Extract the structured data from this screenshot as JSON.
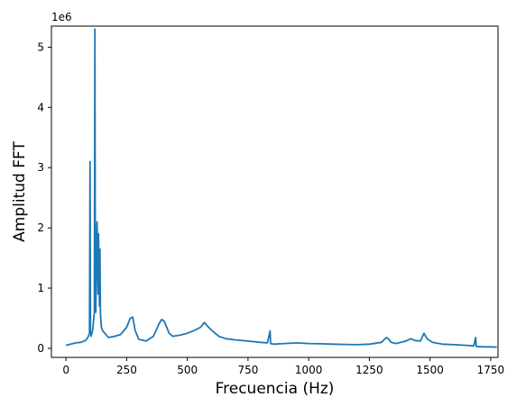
{
  "chart_data": {
    "type": "line",
    "title": "",
    "xlabel": "Frecuencia (Hz)",
    "ylabel": "Amplitud FFT",
    "y_offset_label": "1e6",
    "xlim": [
      -60,
      1780
    ],
    "ylim": [
      -150000,
      5350000
    ],
    "x_ticks": [
      0,
      250,
      500,
      750,
      1000,
      1250,
      1500,
      1750
    ],
    "x_tick_labels": [
      "0",
      "250",
      "500",
      "750",
      "1000",
      "1250",
      "1500",
      "1750"
    ],
    "y_ticks": [
      0,
      1000000,
      2000000,
      3000000,
      4000000,
      5000000
    ],
    "y_tick_labels": [
      "0",
      "1",
      "2",
      "3",
      "4",
      "5"
    ],
    "grid": false,
    "line_color": "#1f77b4",
    "series": [
      {
        "x": [
          0,
          20,
          40,
          60,
          80,
          90,
          97,
          99,
          101,
          103,
          110,
          117,
          119,
          121,
          123,
          126,
          128,
          132,
          134,
          138,
          140,
          142,
          144,
          146,
          150,
          160,
          175,
          200,
          225,
          250,
          265,
          275,
          285,
          300,
          330,
          360,
          385,
          395,
          405,
          415,
          425,
          440,
          470,
          500,
          530,
          555,
          570,
          580,
          600,
          630,
          660,
          700,
          750,
          800,
          830,
          841,
          843,
          855,
          900,
          950,
          1000,
          1050,
          1100,
          1150,
          1200,
          1250,
          1300,
          1320,
          1330,
          1340,
          1360,
          1400,
          1420,
          1440,
          1460,
          1475,
          1490,
          1510,
          1550,
          1600,
          1650,
          1680,
          1688,
          1690,
          1692,
          1700,
          1720,
          1750,
          1775
        ],
        "y": [
          50000,
          70000,
          90000,
          100000,
          130000,
          180000,
          250000,
          3100000,
          300000,
          200000,
          300000,
          600000,
          5300000,
          800000,
          600000,
          1600000,
          2100000,
          900000,
          1900000,
          700000,
          1650000,
          600000,
          450000,
          350000,
          300000,
          250000,
          180000,
          200000,
          230000,
          350000,
          500000,
          520000,
          300000,
          150000,
          120000,
          200000,
          420000,
          480000,
          450000,
          350000,
          250000,
          200000,
          220000,
          250000,
          300000,
          350000,
          430000,
          380000,
          300000,
          200000,
          160000,
          140000,
          120000,
          100000,
          90000,
          290000,
          80000,
          70000,
          80000,
          90000,
          80000,
          75000,
          70000,
          65000,
          60000,
          70000,
          100000,
          180000,
          150000,
          100000,
          80000,
          120000,
          160000,
          130000,
          120000,
          250000,
          150000,
          100000,
          70000,
          60000,
          50000,
          40000,
          180000,
          40000,
          30000,
          30000,
          25000,
          25000,
          20000
        ]
      }
    ]
  }
}
